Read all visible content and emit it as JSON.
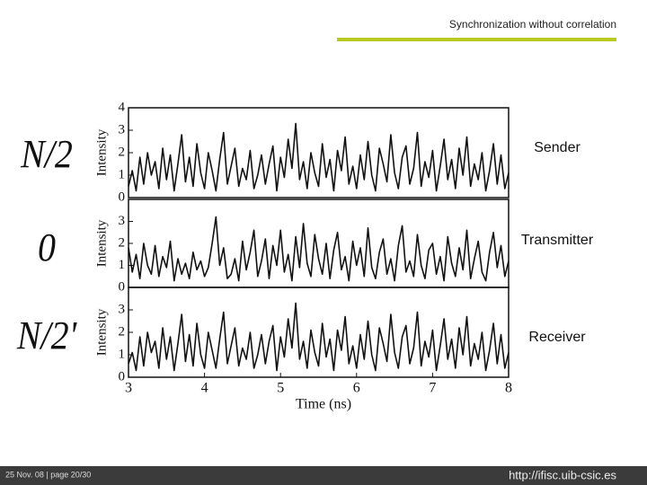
{
  "header": {
    "title": "Synchronization without correlation"
  },
  "footer": {
    "date_page": "25 Nov. 08  |   page 20/30",
    "url": "http://ifisc.uib-csic.es"
  },
  "chart_data": [
    {
      "type": "line",
      "panel_label": "N/2",
      "side_label": "Sender",
      "ylabel": "Intensity",
      "ylim": [
        0,
        4
      ],
      "yticks": [
        0,
        1,
        2,
        3,
        4
      ],
      "xlim": [
        3,
        8
      ],
      "color": "#111111",
      "x": [
        3.0,
        3.05,
        3.1,
        3.15,
        3.2,
        3.25,
        3.3,
        3.35,
        3.4,
        3.45,
        3.5,
        3.55,
        3.6,
        3.65,
        3.7,
        3.75,
        3.8,
        3.85,
        3.9,
        3.95,
        4.0,
        4.05,
        4.1,
        4.15,
        4.2,
        4.25,
        4.3,
        4.35,
        4.4,
        4.45,
        4.5,
        4.55,
        4.6,
        4.65,
        4.7,
        4.75,
        4.8,
        4.85,
        4.9,
        4.95,
        5.0,
        5.05,
        5.1,
        5.15,
        5.2,
        5.25,
        5.3,
        5.35,
        5.4,
        5.45,
        5.5,
        5.55,
        5.6,
        5.65,
        5.7,
        5.75,
        5.8,
        5.85,
        5.9,
        5.95,
        6.0,
        6.05,
        6.1,
        6.15,
        6.2,
        6.25,
        6.3,
        6.35,
        6.4,
        6.45,
        6.5,
        6.55,
        6.6,
        6.65,
        6.7,
        6.75,
        6.8,
        6.85,
        6.9,
        6.95,
        7.0,
        7.05,
        7.1,
        7.15,
        7.2,
        7.25,
        7.3,
        7.35,
        7.4,
        7.45,
        7.5,
        7.55,
        7.6,
        7.65,
        7.7,
        7.75,
        7.8,
        7.85,
        7.9,
        7.95,
        8.0
      ],
      "values": [
        0.5,
        1.2,
        0.3,
        1.8,
        0.6,
        2.0,
        1.0,
        1.6,
        0.4,
        2.2,
        0.8,
        1.9,
        0.3,
        1.5,
        2.8,
        0.7,
        1.8,
        0.5,
        2.4,
        1.1,
        0.4,
        2.0,
        1.2,
        0.3,
        1.7,
        2.9,
        0.6,
        1.4,
        2.2,
        0.5,
        1.3,
        0.8,
        2.1,
        0.4,
        1.0,
        1.9,
        0.6,
        1.5,
        2.3,
        0.3,
        1.8,
        0.9,
        2.6,
        1.3,
        3.3,
        0.8,
        1.6,
        0.4,
        2.0,
        1.1,
        0.5,
        2.4,
        0.9,
        1.7,
        0.3,
        2.1,
        1.2,
        2.7,
        0.6,
        1.4,
        0.4,
        1.9,
        0.8,
        2.5,
        1.0,
        0.3,
        2.2,
        1.5,
        0.7,
        2.8,
        1.1,
        0.4,
        1.8,
        2.3,
        0.6,
        1.3,
        2.9,
        0.5,
        1.6,
        0.9,
        2.1,
        0.3,
        1.4,
        2.6,
        0.8,
        1.7,
        0.4,
        2.2,
        1.0,
        2.7,
        0.5,
        1.5,
        0.8,
        2.0,
        0.3,
        1.2,
        2.4,
        0.6,
        1.9,
        0.4,
        1.1
      ]
    },
    {
      "type": "line",
      "panel_label": "0",
      "side_label": "Transmitter",
      "ylabel": "Intensity",
      "ylim": [
        0,
        4
      ],
      "yticks": [
        0,
        1,
        2,
        3
      ],
      "xlim": [
        3,
        8
      ],
      "color": "#111111",
      "x": [
        3.0,
        3.05,
        3.1,
        3.15,
        3.2,
        3.25,
        3.3,
        3.35,
        3.4,
        3.45,
        3.5,
        3.55,
        3.6,
        3.65,
        3.7,
        3.75,
        3.8,
        3.85,
        3.9,
        3.95,
        4.0,
        4.05,
        4.1,
        4.15,
        4.2,
        4.25,
        4.3,
        4.35,
        4.4,
        4.45,
        4.5,
        4.55,
        4.6,
        4.65,
        4.7,
        4.75,
        4.8,
        4.85,
        4.9,
        4.95,
        5.0,
        5.05,
        5.1,
        5.15,
        5.2,
        5.25,
        5.3,
        5.35,
        5.4,
        5.45,
        5.5,
        5.55,
        5.6,
        5.65,
        5.7,
        5.75,
        5.8,
        5.85,
        5.9,
        5.95,
        6.0,
        6.05,
        6.1,
        6.15,
        6.2,
        6.25,
        6.3,
        6.35,
        6.4,
        6.45,
        6.5,
        6.55,
        6.6,
        6.65,
        6.7,
        6.75,
        6.8,
        6.85,
        6.9,
        6.95,
        7.0,
        7.05,
        7.1,
        7.15,
        7.2,
        7.25,
        7.3,
        7.35,
        7.4,
        7.45,
        7.5,
        7.55,
        7.6,
        7.65,
        7.7,
        7.75,
        7.8,
        7.85,
        7.9,
        7.95,
        8.0
      ],
      "values": [
        1.8,
        0.7,
        1.5,
        0.4,
        2.0,
        1.0,
        0.6,
        1.9,
        0.5,
        1.4,
        0.9,
        2.1,
        0.3,
        1.3,
        0.6,
        1.1,
        0.4,
        1.6,
        0.8,
        1.2,
        0.5,
        0.9,
        2.0,
        3.2,
        1.0,
        1.8,
        0.4,
        0.6,
        1.3,
        0.3,
        2.1,
        0.8,
        1.6,
        2.6,
        0.5,
        1.2,
        2.2,
        0.4,
        1.9,
        1.0,
        2.6,
        0.7,
        1.5,
        0.3,
        2.3,
        0.9,
        2.9,
        1.1,
        0.5,
        2.4,
        1.3,
        0.6,
        2.0,
        0.4,
        1.7,
        2.5,
        0.8,
        1.4,
        0.3,
        2.1,
        1.0,
        1.8,
        0.5,
        2.7,
        0.9,
        0.4,
        1.6,
        2.2,
        0.6,
        1.3,
        0.3,
        1.9,
        2.8,
        0.7,
        1.2,
        0.5,
        2.4,
        1.0,
        0.4,
        1.7,
        2.0,
        0.6,
        1.4,
        0.3,
        2.3,
        1.1,
        0.5,
        1.8,
        0.8,
        2.6,
        0.4,
        1.3,
        2.1,
        0.7,
        0.3,
        1.6,
        2.5,
        0.9,
        1.9,
        0.5,
        1.2
      ]
    },
    {
      "type": "line",
      "panel_label": "N/2'",
      "side_label": "Receiver",
      "ylabel": "Intensity",
      "xlabel": "Time (ns)",
      "ylim": [
        0,
        4
      ],
      "yticks": [
        0,
        1,
        2,
        3
      ],
      "xlim": [
        3,
        8
      ],
      "xticks": [
        3,
        4,
        5,
        6,
        7,
        8
      ],
      "color": "#111111",
      "x": [
        3.0,
        3.05,
        3.1,
        3.15,
        3.2,
        3.25,
        3.3,
        3.35,
        3.4,
        3.45,
        3.5,
        3.55,
        3.6,
        3.65,
        3.7,
        3.75,
        3.8,
        3.85,
        3.9,
        3.95,
        4.0,
        4.05,
        4.1,
        4.15,
        4.2,
        4.25,
        4.3,
        4.35,
        4.4,
        4.45,
        4.5,
        4.55,
        4.6,
        4.65,
        4.7,
        4.75,
        4.8,
        4.85,
        4.9,
        4.95,
        5.0,
        5.05,
        5.1,
        5.15,
        5.2,
        5.25,
        5.3,
        5.35,
        5.4,
        5.45,
        5.5,
        5.55,
        5.6,
        5.65,
        5.7,
        5.75,
        5.8,
        5.85,
        5.9,
        5.95,
        6.0,
        6.05,
        6.1,
        6.15,
        6.2,
        6.25,
        6.3,
        6.35,
        6.4,
        6.45,
        6.5,
        6.55,
        6.6,
        6.65,
        6.7,
        6.75,
        6.8,
        6.85,
        6.9,
        6.95,
        7.0,
        7.05,
        7.1,
        7.15,
        7.2,
        7.25,
        7.3,
        7.35,
        7.4,
        7.45,
        7.5,
        7.55,
        7.6,
        7.65,
        7.7,
        7.75,
        7.8,
        7.85,
        7.9,
        7.95,
        8.0
      ],
      "values": [
        0.6,
        1.1,
        0.3,
        1.8,
        0.5,
        2.0,
        1.1,
        1.6,
        0.4,
        2.2,
        0.8,
        1.8,
        0.3,
        1.5,
        2.8,
        0.7,
        1.9,
        0.5,
        2.4,
        1.0,
        0.4,
        2.0,
        1.2,
        0.4,
        1.7,
        2.9,
        0.6,
        1.4,
        2.2,
        0.5,
        1.3,
        0.8,
        2.0,
        0.4,
        1.0,
        1.9,
        0.6,
        1.6,
        2.3,
        0.3,
        1.8,
        0.9,
        2.6,
        1.3,
        3.3,
        0.8,
        1.6,
        0.4,
        2.1,
        1.1,
        0.5,
        2.4,
        0.9,
        1.7,
        0.3,
        2.1,
        1.2,
        2.7,
        0.6,
        1.4,
        0.4,
        1.9,
        0.8,
        2.5,
        1.0,
        0.3,
        2.2,
        1.5,
        0.7,
        2.8,
        1.1,
        0.4,
        1.8,
        2.3,
        0.6,
        1.3,
        2.9,
        0.5,
        1.6,
        0.9,
        2.1,
        0.3,
        1.4,
        2.6,
        0.8,
        1.7,
        0.4,
        2.2,
        1.0,
        2.7,
        0.5,
        1.5,
        0.8,
        2.0,
        0.3,
        1.2,
        2.4,
        0.6,
        1.9,
        0.4,
        1.1
      ]
    }
  ]
}
